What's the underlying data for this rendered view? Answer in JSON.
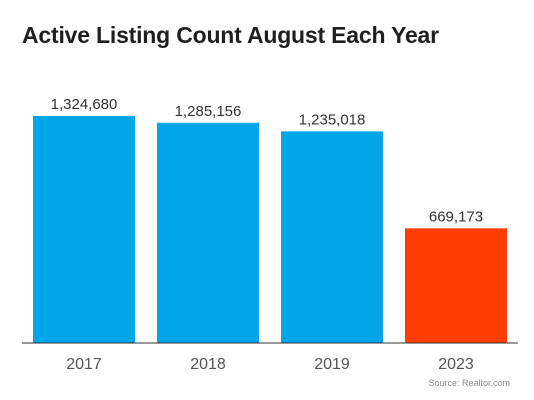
{
  "chart_data": {
    "type": "bar",
    "title": "Active Listing Count August Each Year",
    "categories": [
      "2017",
      "2018",
      "2019",
      "2023"
    ],
    "values": [
      1324680,
      1285156,
      1235018,
      669173
    ],
    "data_labels": [
      "1,324,680",
      "1,285,156",
      "1,235,018",
      "669,173"
    ],
    "colors": [
      "#00A6E8",
      "#00A6E8",
      "#00A6E8",
      "#FF3D00"
    ],
    "xlabel": "",
    "ylabel": "",
    "ylim": [
      0,
      1324680
    ],
    "grid": false,
    "legend": "none"
  },
  "source": "Source: Realtor.com"
}
